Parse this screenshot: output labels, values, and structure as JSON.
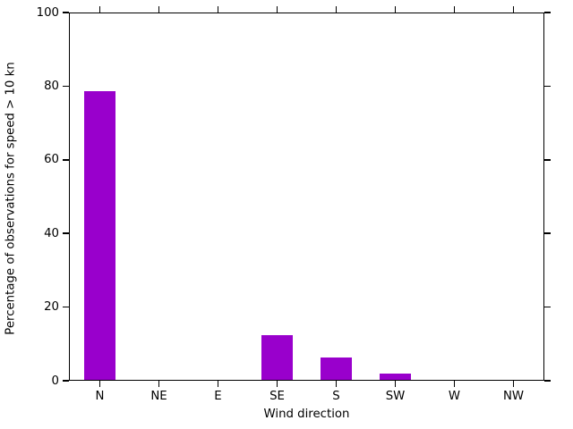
{
  "chart_data": {
    "type": "bar",
    "title": "",
    "xlabel": "Wind direction",
    "ylabel": "Percentage of observations for speed > 10 kn",
    "categories": [
      "N",
      "NE",
      "E",
      "SE",
      "S",
      "SW",
      "W",
      "NW"
    ],
    "values": [
      79,
      0,
      0,
      12.3,
      6.2,
      1.8,
      0,
      0
    ],
    "ylim": [
      0,
      100
    ],
    "yticks": [
      0,
      20,
      40,
      60,
      80,
      100
    ],
    "grid": false,
    "legend": "none",
    "colors": {
      "bar": "#9900cc",
      "axis": "#000000",
      "text": "#000000",
      "background": "#ffffff"
    }
  }
}
